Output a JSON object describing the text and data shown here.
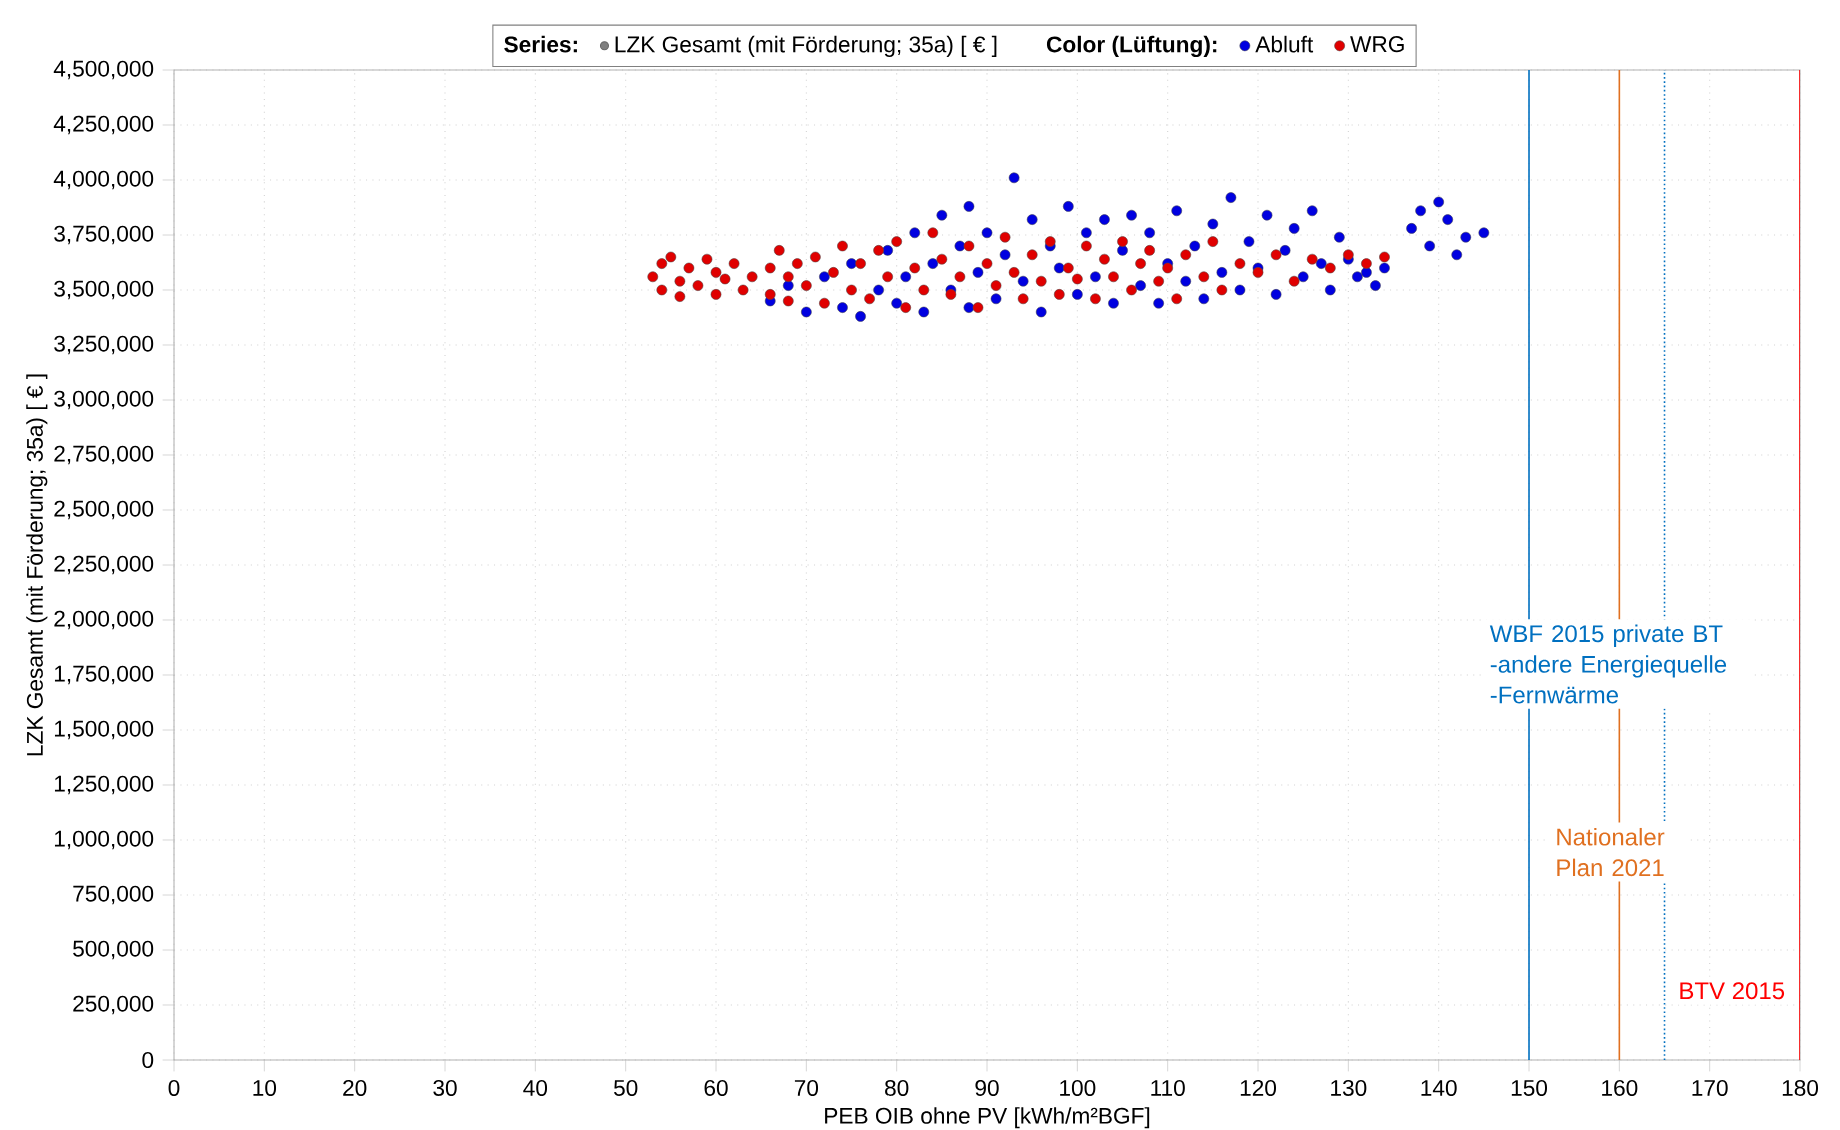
{
  "chart_data": {
    "type": "scatter",
    "xlabel": "PEB OIB ohne PV [kWh/m²BGF]",
    "ylabel": "LZK Gesamt (mit Förderung; 35a) [ € ]",
    "legend_title": "Color (Lüftung):",
    "annotations": [
      "Series:",
      "LZK Gesamt (mit Förderung; 35a) [ € ]"
    ],
    "xlim": [
      0,
      180
    ],
    "xticks": [
      0,
      10,
      20,
      30,
      40,
      50,
      60,
      70,
      80,
      90,
      100,
      110,
      120,
      130,
      140,
      150,
      160,
      170,
      180
    ],
    "ylim": [
      0,
      4500000
    ],
    "yticks": [
      {
        "value": 0,
        "label": "0"
      },
      {
        "value": 250000,
        "label": "250,000"
      },
      {
        "value": 500000,
        "label": "500,000"
      },
      {
        "value": 750000,
        "label": "750,000"
      },
      {
        "value": 1000000,
        "label": "1,000,000"
      },
      {
        "value": 1250000,
        "label": "1,250,000"
      },
      {
        "value": 1500000,
        "label": "1,500,000"
      },
      {
        "value": 1750000,
        "label": "1,750,000"
      },
      {
        "value": 2000000,
        "label": "2,000,000"
      },
      {
        "value": 2250000,
        "label": "2,250,000"
      },
      {
        "value": 2500000,
        "label": "2,500,000"
      },
      {
        "value": 2750000,
        "label": "2,750,000"
      },
      {
        "value": 3000000,
        "label": "3,000,000"
      },
      {
        "value": 3250000,
        "label": "3,250,000"
      },
      {
        "value": 3500000,
        "label": "3,500,000"
      },
      {
        "value": 3750000,
        "label": "3,750,000"
      },
      {
        "value": 4000000,
        "label": "4,000,000"
      },
      {
        "value": 4250000,
        "label": "4,250,000"
      },
      {
        "value": 4500000,
        "label": "4,500,000"
      }
    ],
    "grid": true,
    "legend": "top",
    "marker": "circle",
    "ref_lines": [
      {
        "axis": "x",
        "value": 150,
        "label": "WBF 2015 private BT -andere Energiequelle -Fernwärme",
        "color": "#0070c0",
        "line_style": "solid"
      },
      {
        "axis": "x",
        "value": 160,
        "label": "Nationaler Plan 2021",
        "color": "#e07020",
        "line_style": "solid"
      },
      {
        "axis": "x",
        "value": 165,
        "color": "#0070c0",
        "line_style": "dotted"
      },
      {
        "axis": "x",
        "value": 180,
        "label": "BTV 2015",
        "color": "#ff0000",
        "line_style": "solid"
      }
    ],
    "series": [
      {
        "name": "Abluft",
        "color": "#0000e0",
        "x": [
          66,
          68,
          70,
          72,
          74,
          75,
          76,
          78,
          79,
          80,
          81,
          82,
          83,
          84,
          85,
          86,
          87,
          88,
          88,
          89,
          90,
          91,
          92,
          93,
          94,
          95,
          96,
          97,
          98,
          99,
          100,
          101,
          102,
          103,
          104,
          105,
          106,
          107,
          108,
          109,
          110,
          111,
          112,
          113,
          114,
          115,
          116,
          117,
          118,
          119,
          120,
          121,
          122,
          123,
          124,
          125,
          126,
          127,
          128,
          129,
          130,
          131,
          132,
          133,
          134,
          137,
          138,
          139,
          140,
          141,
          142,
          143,
          145
        ],
        "values": [
          3450000,
          3520000,
          3400000,
          3560000,
          3420000,
          3620000,
          3380000,
          3500000,
          3680000,
          3440000,
          3560000,
          3760000,
          3400000,
          3620000,
          3840000,
          3500000,
          3700000,
          3420000,
          3880000,
          3580000,
          3760000,
          3460000,
          3660000,
          4010000,
          3540000,
          3820000,
          3400000,
          3700000,
          3600000,
          3880000,
          3480000,
          3760000,
          3560000,
          3820000,
          3440000,
          3680000,
          3840000,
          3520000,
          3760000,
          3440000,
          3620000,
          3860000,
          3540000,
          3700000,
          3460000,
          3800000,
          3580000,
          3920000,
          3500000,
          3720000,
          3600000,
          3840000,
          3480000,
          3680000,
          3780000,
          3560000,
          3860000,
          3620000,
          3500000,
          3740000,
          3640000,
          3560000,
          3580000,
          3520000,
          3600000,
          3780000,
          3860000,
          3700000,
          3900000,
          3820000,
          3660000,
          3740000,
          3760000
        ]
      },
      {
        "name": "WRG",
        "color": "#e00000",
        "x": [
          53,
          54,
          54,
          55,
          56,
          56,
          57,
          58,
          59,
          60,
          60,
          61,
          62,
          63,
          64,
          66,
          66,
          67,
          68,
          68,
          69,
          70,
          71,
          72,
          73,
          74,
          75,
          76,
          77,
          78,
          79,
          80,
          81,
          82,
          83,
          84,
          85,
          86,
          87,
          88,
          89,
          90,
          91,
          92,
          93,
          94,
          95,
          96,
          97,
          98,
          99,
          100,
          101,
          102,
          103,
          104,
          105,
          106,
          107,
          108,
          109,
          110,
          111,
          112,
          114,
          115,
          116,
          118,
          120,
          122,
          124,
          126,
          128,
          130,
          132,
          134
        ],
        "values": [
          3560000,
          3620000,
          3500000,
          3650000,
          3540000,
          3470000,
          3600000,
          3520000,
          3640000,
          3580000,
          3480000,
          3550000,
          3620000,
          3500000,
          3560000,
          3600000,
          3480000,
          3680000,
          3450000,
          3560000,
          3620000,
          3520000,
          3650000,
          3440000,
          3580000,
          3700000,
          3500000,
          3620000,
          3460000,
          3680000,
          3560000,
          3720000,
          3420000,
          3600000,
          3500000,
          3760000,
          3640000,
          3480000,
          3560000,
          3700000,
          3420000,
          3620000,
          3520000,
          3740000,
          3580000,
          3460000,
          3660000,
          3540000,
          3720000,
          3480000,
          3600000,
          3550000,
          3700000,
          3460000,
          3640000,
          3560000,
          3720000,
          3500000,
          3620000,
          3680000,
          3540000,
          3600000,
          3460000,
          3660000,
          3560000,
          3720000,
          3500000,
          3620000,
          3580000,
          3660000,
          3540000,
          3640000,
          3600000,
          3660000,
          3620000,
          3650000
        ]
      }
    ]
  }
}
